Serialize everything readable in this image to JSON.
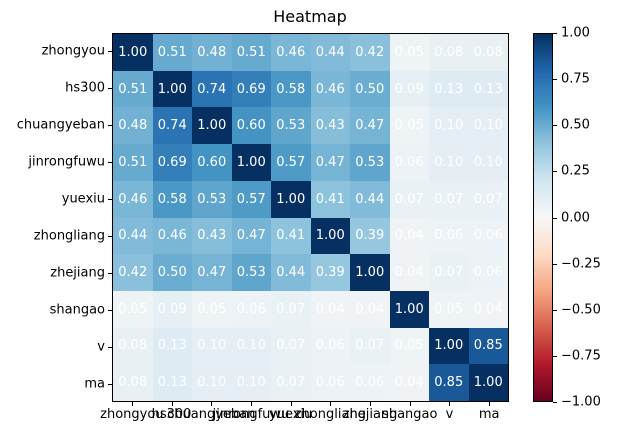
{
  "figure": {
    "background": "#ffffff",
    "text_color": "#000000"
  },
  "chart_data": {
    "type": "heatmap",
    "title": "Heatmap",
    "categories": [
      "zhongyou",
      "hs300",
      "chuangyeban",
      "jinrongfuwu",
      "yuexiu",
      "zhongliang",
      "zhejiang",
      "shangao",
      "v",
      "ma"
    ],
    "matrix": [
      [
        1.0,
        0.51,
        0.48,
        0.51,
        0.46,
        0.44,
        0.42,
        0.05,
        0.08,
        0.08
      ],
      [
        0.51,
        1.0,
        0.74,
        0.69,
        0.58,
        0.46,
        0.5,
        0.09,
        0.13,
        0.13
      ],
      [
        0.48,
        0.74,
        1.0,
        0.6,
        0.53,
        0.43,
        0.47,
        0.05,
        0.1,
        0.1
      ],
      [
        0.51,
        0.69,
        0.6,
        1.0,
        0.57,
        0.47,
        0.53,
        0.06,
        0.1,
        0.1
      ],
      [
        0.46,
        0.58,
        0.53,
        0.57,
        1.0,
        0.41,
        0.44,
        0.07,
        0.07,
        0.07
      ],
      [
        0.44,
        0.46,
        0.43,
        0.47,
        0.41,
        1.0,
        0.39,
        0.04,
        0.06,
        0.06
      ],
      [
        0.42,
        0.5,
        0.47,
        0.53,
        0.44,
        0.39,
        1.0,
        0.04,
        0.07,
        0.06
      ],
      [
        0.05,
        0.09,
        0.05,
        0.06,
        0.07,
        0.04,
        0.04,
        1.0,
        0.05,
        0.04
      ],
      [
        0.08,
        0.13,
        0.1,
        0.1,
        0.07,
        0.06,
        0.07,
        0.05,
        1.0,
        0.85
      ],
      [
        0.08,
        0.13,
        0.1,
        0.1,
        0.07,
        0.06,
        0.06,
        0.04,
        0.85,
        1.0
      ]
    ],
    "vmin": -1.0,
    "vmax": 1.0,
    "annotation_decimals": 2,
    "annotation_color": "#ffffff",
    "colormap": "RdBu",
    "colormap_anchors_low_to_high": [
      "#67001f",
      "#b2182b",
      "#d6604d",
      "#f4a582",
      "#fddbc7",
      "#f7f7f7",
      "#d1e5f0",
      "#92c5de",
      "#4393c3",
      "#2166ac",
      "#053061"
    ],
    "grid": false,
    "legend_position": "colorbar-right",
    "colorbar": {
      "ticks": [
        1.0,
        0.75,
        0.5,
        0.25,
        0.0,
        -0.25,
        -0.5,
        -0.75,
        -1.0
      ],
      "tick_labels": [
        "1.00",
        "0.75",
        "0.50",
        "0.25",
        "0.00",
        "−0.25",
        "−0.50",
        "−0.75",
        "−1.00"
      ]
    }
  }
}
